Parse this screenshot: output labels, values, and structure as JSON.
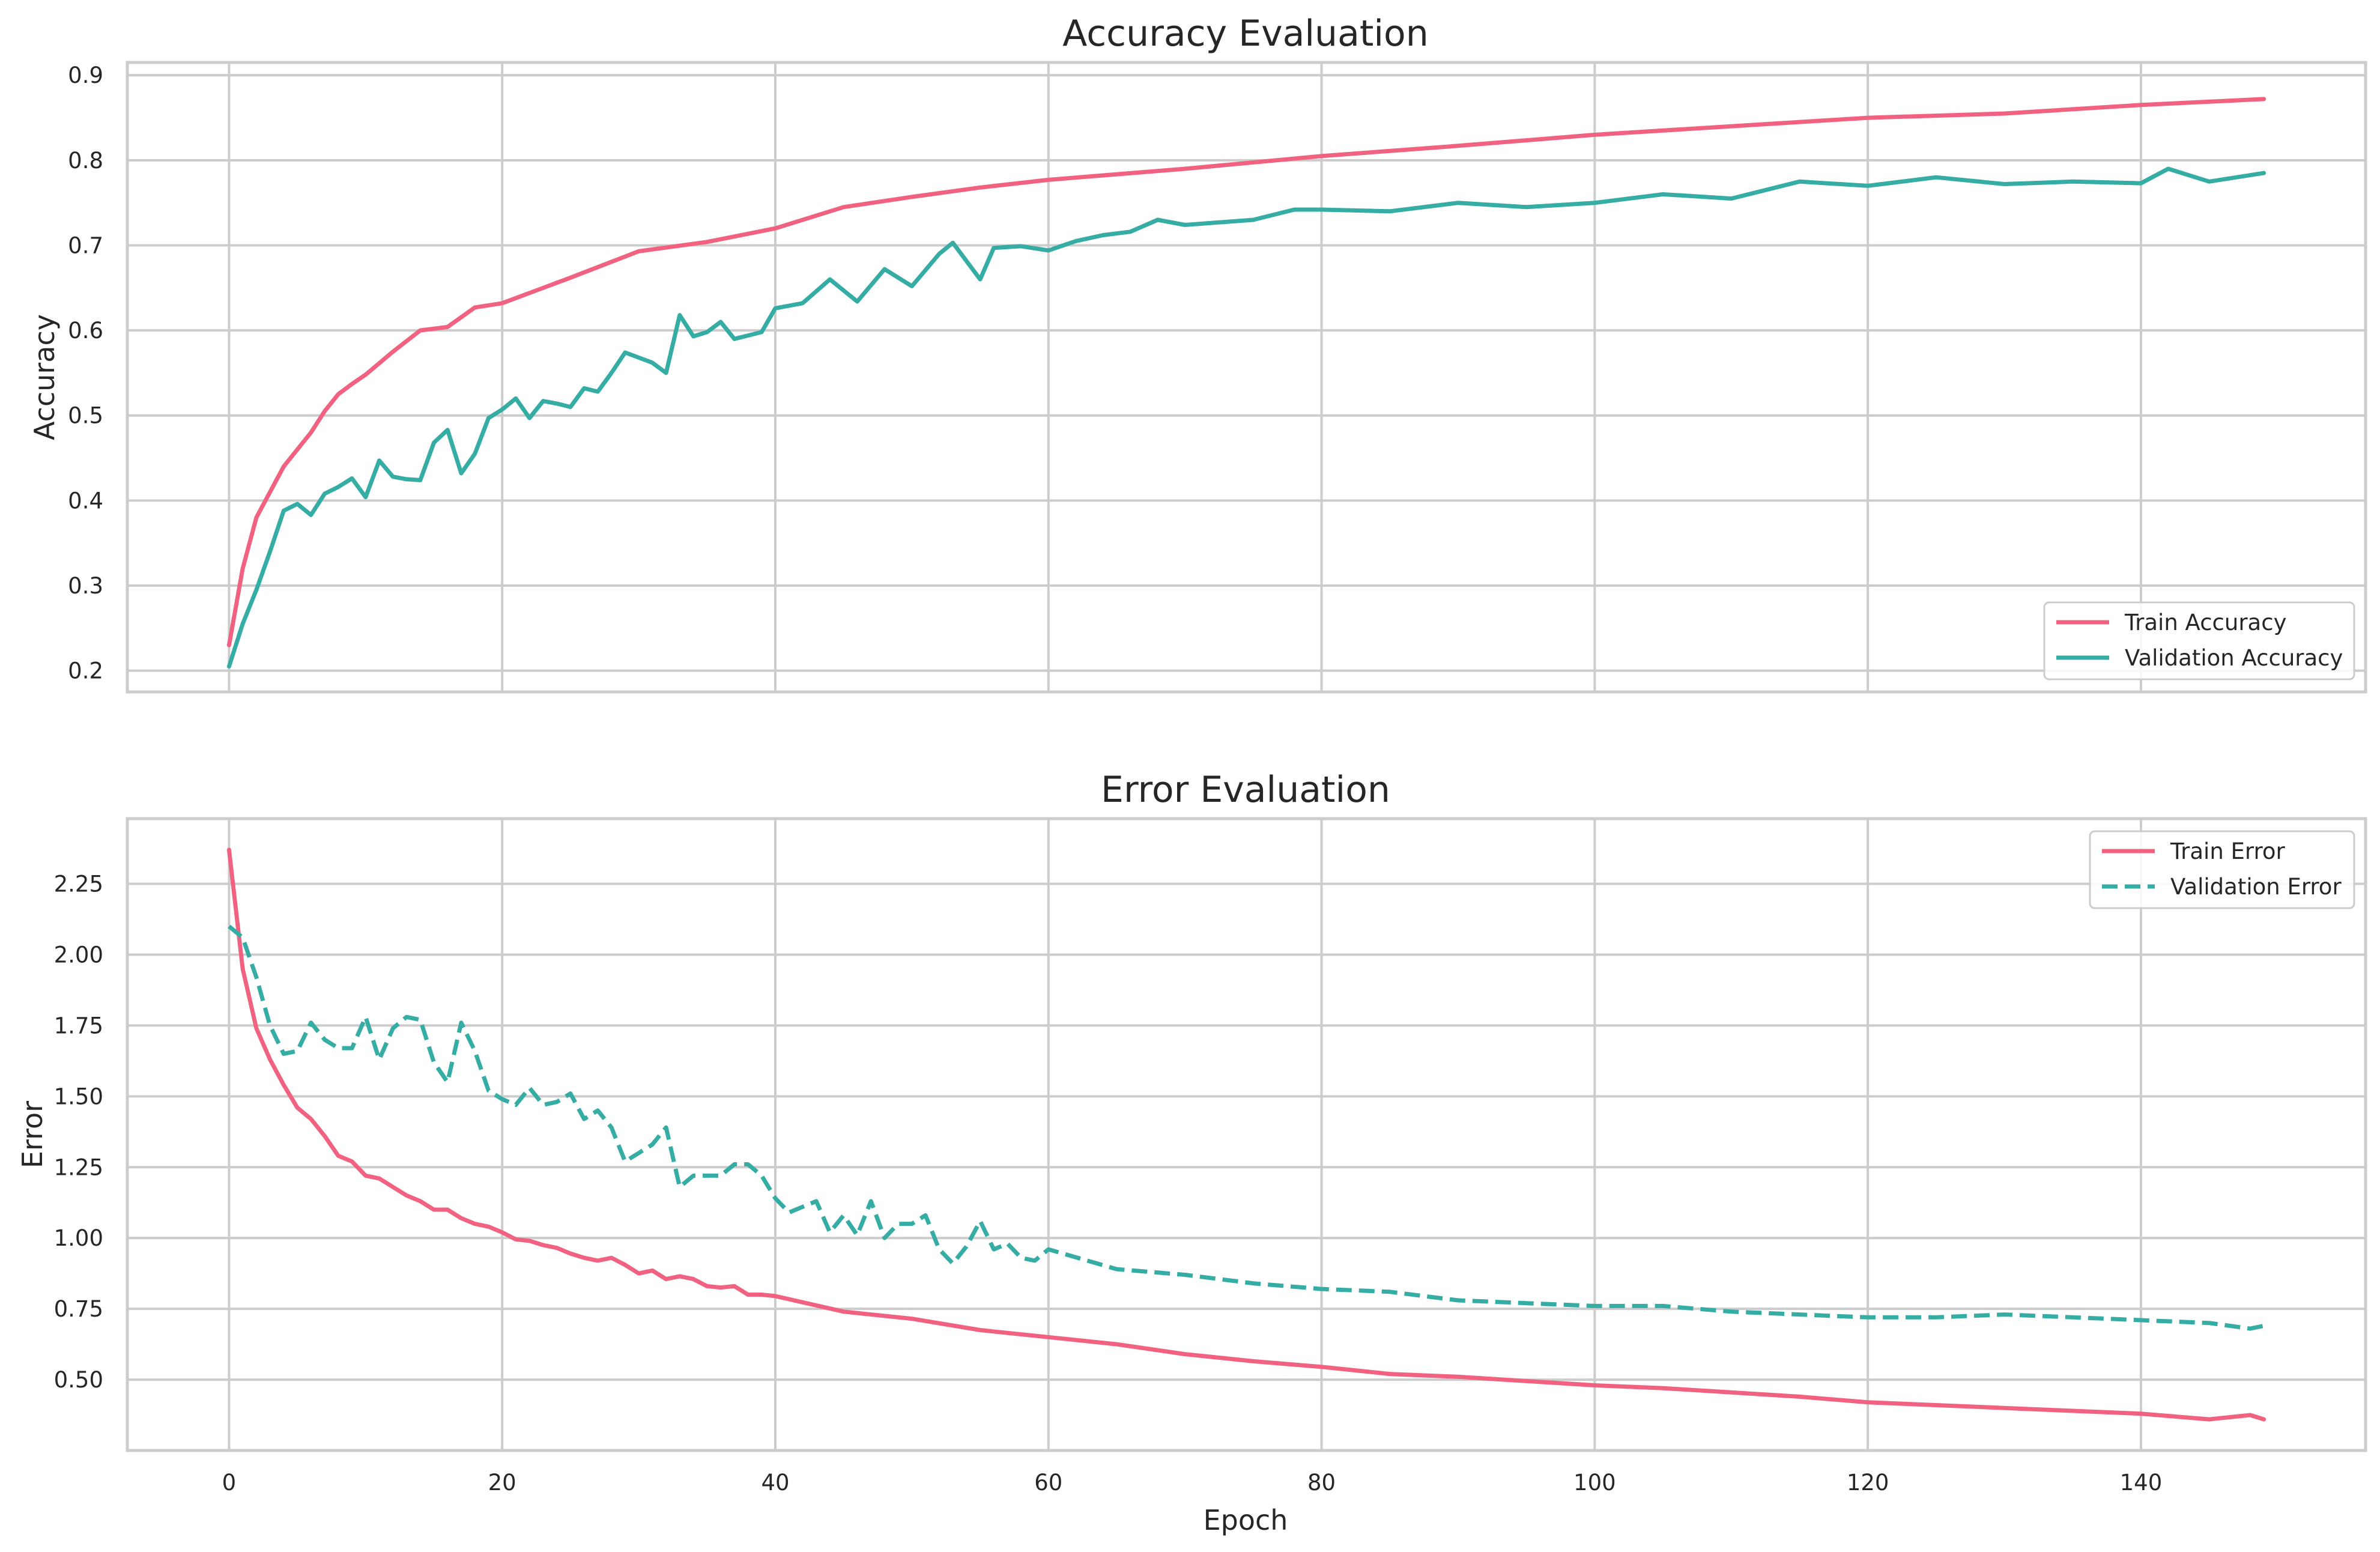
{
  "chart_data": [
    {
      "type": "line",
      "title": "Accuracy Evaluation",
      "xlabel": "",
      "ylabel": "Accuracy",
      "xlim": [
        -7.45,
        156.45
      ],
      "ylim": [
        0.175,
        0.915
      ],
      "xticks": [
        0,
        20,
        40,
        60,
        80,
        100,
        120,
        140
      ],
      "yticks": [
        0.2,
        0.3,
        0.4,
        0.5,
        0.6,
        0.7,
        0.8,
        0.9
      ],
      "ytick_labels": [
        "0.2",
        "0.3",
        "0.4",
        "0.5",
        "0.6",
        "0.7",
        "0.8",
        "0.9"
      ],
      "grid": true,
      "legend_position": "lower-right",
      "series": [
        {
          "name": "Train Accuracy",
          "color": "#f0627f",
          "style": "solid",
          "x": [
            0,
            1,
            2,
            3,
            4,
            5,
            6,
            7,
            8,
            9,
            10,
            12,
            14,
            16,
            18,
            20,
            25,
            30,
            35,
            40,
            45,
            50,
            55,
            60,
            70,
            80,
            90,
            100,
            110,
            120,
            130,
            140,
            149
          ],
          "y": [
            0.23,
            0.32,
            0.38,
            0.41,
            0.44,
            0.46,
            0.48,
            0.505,
            0.525,
            0.537,
            0.548,
            0.575,
            0.6,
            0.604,
            0.627,
            0.632,
            0.662,
            0.693,
            0.704,
            0.72,
            0.745,
            0.757,
            0.768,
            0.777,
            0.79,
            0.805,
            0.817,
            0.83,
            0.84,
            0.85,
            0.855,
            0.865,
            0.872
          ]
        },
        {
          "name": "Validation Accuracy",
          "color": "#36ada4",
          "style": "solid",
          "x": [
            0,
            1,
            2,
            3,
            4,
            5,
            6,
            7,
            8,
            9,
            10,
            11,
            12,
            13,
            14,
            15,
            16,
            17,
            18,
            19,
            20,
            21,
            22,
            23,
            24,
            25,
            26,
            27,
            28,
            29,
            30,
            31,
            32,
            33,
            34,
            35,
            36,
            37,
            38,
            39,
            40,
            42,
            44,
            46,
            48,
            50,
            52,
            53,
            55,
            56,
            58,
            60,
            62,
            64,
            66,
            68,
            70,
            75,
            78,
            80,
            85,
            90,
            95,
            100,
            105,
            110,
            115,
            120,
            125,
            130,
            135,
            140,
            142,
            145,
            149
          ],
          "y": [
            0.205,
            0.255,
            0.295,
            0.34,
            0.388,
            0.396,
            0.383,
            0.408,
            0.416,
            0.426,
            0.404,
            0.447,
            0.428,
            0.425,
            0.424,
            0.468,
            0.483,
            0.432,
            0.455,
            0.497,
            0.507,
            0.52,
            0.497,
            0.517,
            0.514,
            0.51,
            0.532,
            0.528,
            0.55,
            0.574,
            0.568,
            0.562,
            0.55,
            0.618,
            0.593,
            0.598,
            0.61,
            0.59,
            0.594,
            0.598,
            0.626,
            0.632,
            0.66,
            0.634,
            0.672,
            0.652,
            0.69,
            0.703,
            0.66,
            0.697,
            0.699,
            0.694,
            0.705,
            0.712,
            0.716,
            0.73,
            0.724,
            0.73,
            0.742,
            0.742,
            0.74,
            0.75,
            0.745,
            0.75,
            0.76,
            0.755,
            0.775,
            0.77,
            0.78,
            0.772,
            0.775,
            0.773,
            0.79,
            0.775,
            0.785
          ]
        }
      ]
    },
    {
      "type": "line",
      "title": "Error Evaluation",
      "xlabel": "Epoch",
      "ylabel": "Error",
      "xlim": [
        -7.45,
        156.45
      ],
      "ylim": [
        0.25,
        2.48
      ],
      "xticks": [
        0,
        20,
        40,
        60,
        80,
        100,
        120,
        140
      ],
      "xtick_labels": [
        "0",
        "20",
        "40",
        "60",
        "80",
        "100",
        "120",
        "140"
      ],
      "yticks": [
        0.5,
        0.75,
        1.0,
        1.25,
        1.5,
        1.75,
        2.0,
        2.25
      ],
      "ytick_labels": [
        "0.50",
        "0.75",
        "1.00",
        "1.25",
        "1.50",
        "1.75",
        "2.00",
        "2.25"
      ],
      "grid": true,
      "legend_position": "upper-right",
      "series": [
        {
          "name": "Train Error",
          "color": "#f0627f",
          "style": "solid",
          "x": [
            0,
            1,
            2,
            3,
            4,
            5,
            6,
            7,
            8,
            9,
            10,
            11,
            12,
            13,
            14,
            15,
            16,
            17,
            18,
            19,
            20,
            21,
            22,
            23,
            24,
            25,
            26,
            27,
            28,
            29,
            30,
            31,
            32,
            33,
            34,
            35,
            36,
            37,
            38,
            39,
            40,
            45,
            50,
            55,
            60,
            65,
            70,
            75,
            80,
            85,
            90,
            95,
            100,
            105,
            110,
            115,
            120,
            125,
            130,
            135,
            140,
            145,
            148,
            149
          ],
          "y": [
            2.37,
            1.95,
            1.74,
            1.63,
            1.54,
            1.46,
            1.42,
            1.36,
            1.29,
            1.27,
            1.22,
            1.21,
            1.18,
            1.15,
            1.13,
            1.1,
            1.1,
            1.07,
            1.05,
            1.04,
            1.02,
            0.995,
            0.99,
            0.975,
            0.965,
            0.945,
            0.93,
            0.92,
            0.93,
            0.905,
            0.875,
            0.885,
            0.855,
            0.865,
            0.855,
            0.83,
            0.825,
            0.83,
            0.8,
            0.8,
            0.795,
            0.74,
            0.715,
            0.675,
            0.65,
            0.625,
            0.59,
            0.565,
            0.545,
            0.52,
            0.51,
            0.495,
            0.48,
            0.47,
            0.455,
            0.44,
            0.42,
            0.41,
            0.4,
            0.39,
            0.38,
            0.36,
            0.375,
            0.36
          ]
        },
        {
          "name": "Validation Error",
          "color": "#36ada4",
          "style": "dashed",
          "x": [
            0,
            1,
            2,
            3,
            4,
            5,
            6,
            7,
            8,
            9,
            10,
            11,
            12,
            13,
            14,
            15,
            16,
            17,
            18,
            19,
            20,
            21,
            22,
            23,
            24,
            25,
            26,
            27,
            28,
            29,
            30,
            31,
            32,
            33,
            34,
            35,
            36,
            37,
            38,
            39,
            40,
            41,
            42,
            43,
            44,
            45,
            46,
            47,
            48,
            49,
            50,
            51,
            52,
            53,
            54,
            55,
            56,
            57,
            58,
            59,
            60,
            65,
            70,
            75,
            80,
            85,
            90,
            95,
            100,
            105,
            110,
            115,
            120,
            125,
            130,
            135,
            140,
            145,
            148,
            149
          ],
          "y": [
            2.1,
            2.06,
            1.92,
            1.75,
            1.65,
            1.66,
            1.76,
            1.7,
            1.67,
            1.67,
            1.78,
            1.63,
            1.74,
            1.78,
            1.77,
            1.62,
            1.55,
            1.76,
            1.66,
            1.52,
            1.49,
            1.47,
            1.53,
            1.47,
            1.48,
            1.51,
            1.42,
            1.45,
            1.39,
            1.27,
            1.3,
            1.33,
            1.39,
            1.18,
            1.22,
            1.22,
            1.22,
            1.26,
            1.26,
            1.22,
            1.14,
            1.09,
            1.11,
            1.13,
            1.02,
            1.08,
            1.01,
            1.13,
            1.0,
            1.05,
            1.05,
            1.08,
            0.96,
            0.91,
            0.97,
            1.06,
            0.96,
            0.98,
            0.93,
            0.92,
            0.96,
            0.89,
            0.87,
            0.84,
            0.82,
            0.81,
            0.78,
            0.77,
            0.76,
            0.76,
            0.74,
            0.73,
            0.72,
            0.72,
            0.73,
            0.72,
            0.71,
            0.7,
            0.68,
            0.69
          ]
        }
      ]
    }
  ]
}
